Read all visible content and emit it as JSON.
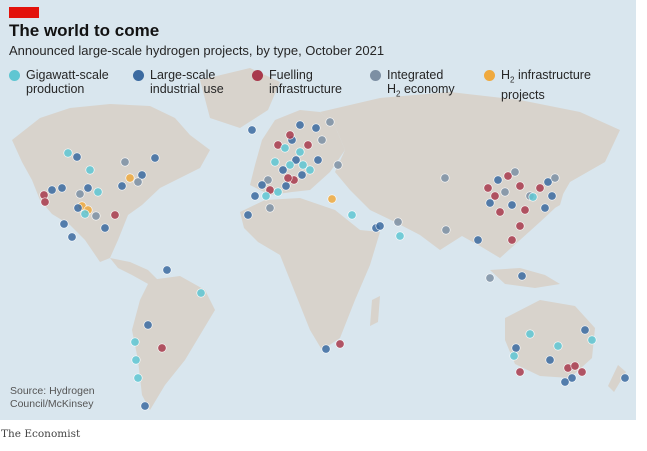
{
  "header": {
    "title": "The world to come",
    "subtitle": "Announced large-scale hydrogen projects, by type, October 2021"
  },
  "legend": [
    {
      "key": "gigawatt",
      "line1": "Gigawatt-scale",
      "line2": "production",
      "color": "#5fc6d2"
    },
    {
      "key": "industrial",
      "line1": "Large-scale",
      "line2": "industrial use",
      "color": "#3b6aa0"
    },
    {
      "key": "fuelling",
      "line1": "Fuelling",
      "line2": "infrastructure",
      "color": "#a8394c"
    },
    {
      "key": "integrated",
      "line1": "Integrated",
      "line2_prefix": "H",
      "line2_sub": "2",
      "line2_suffix": " economy",
      "color": "#7d8fa3"
    },
    {
      "key": "h2infra",
      "line1_prefix": "H",
      "line1_sub": "2",
      "line1_suffix": " infrastructure",
      "line2": "projects",
      "color": "#efa93e"
    }
  ],
  "map": {
    "ocean_color": "#d9e6ee",
    "land_color": "#d8d3cc"
  },
  "source": {
    "line1": "Source: Hydrogen",
    "line2": "Council/McKinsey"
  },
  "credit": "The Economist"
}
